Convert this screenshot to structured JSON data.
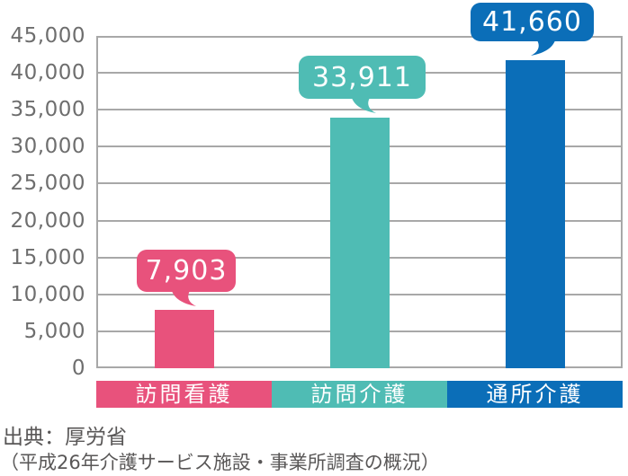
{
  "chart_data": {
    "type": "bar",
    "title": "",
    "categories": [
      "訪問看護",
      "訪問介護",
      "通所介護"
    ],
    "values": [
      7903,
      33911,
      41660
    ],
    "value_labels": [
      "7,903",
      "33,911",
      "41,660"
    ],
    "bar_colors": [
      "#e8527c",
      "#4fbcb4",
      "#0b6eb8"
    ],
    "ylim": [
      0,
      45000
    ],
    "ytick_step": 5000,
    "yticks": [
      "45,000",
      "40,000",
      "35,000",
      "30,000",
      "25,000",
      "20,000",
      "15,000",
      "10,000",
      "5,000",
      "0"
    ],
    "grid": true,
    "legend": "none",
    "xlabel": "",
    "ylabel": ""
  },
  "source": {
    "line1": "出典：厚労省",
    "line2": "（平成26年介護サービス施設・事業所調査の概況）"
  },
  "colors": {
    "pink": "#e8527c",
    "teal": "#4fbcb4",
    "blue": "#0b6eb8",
    "gridline": "#a8a8a8",
    "tick_text": "#6e6e6e",
    "source_text": "#595757",
    "bubble_text": "#ffffff",
    "band_text": "#ffffff",
    "background": "#ffffff"
  }
}
